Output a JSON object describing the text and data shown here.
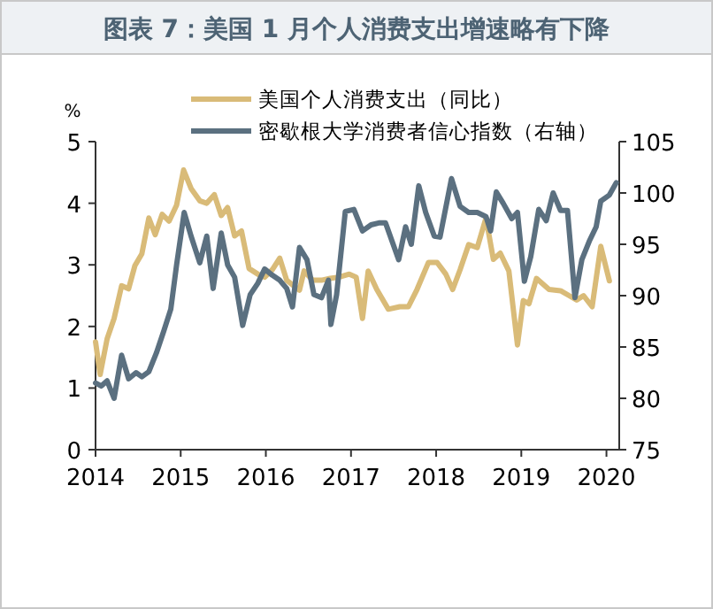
{
  "chart_data": {
    "type": "line",
    "title": "图表 7：美国 1 月个人消费支出增速略有下降",
    "ylabel": "%",
    "legend": "top right",
    "grid": false,
    "xlim": [
      2014,
      2020.15
    ],
    "xticks": [
      2014,
      2015,
      2016,
      2017,
      2018,
      2019,
      2020
    ],
    "ylim": [
      0,
      5
    ],
    "yticks": [
      0,
      1,
      2,
      3,
      4,
      5
    ],
    "y2lim": [
      75,
      105
    ],
    "y2ticks": [
      75,
      80,
      85,
      90,
      95,
      100,
      105
    ],
    "series": [
      {
        "name": "美国个人消费支出（同比）",
        "color": "#d9bb78",
        "x": [
          2014.0,
          2014.054,
          2014.136,
          2014.218,
          2014.306,
          2014.388,
          2014.463,
          2014.544,
          2014.626,
          2014.701,
          2014.782,
          2014.864,
          2014.952,
          2015.034,
          2015.122,
          2015.224,
          2015.306,
          2015.395,
          2015.476,
          2015.551,
          2015.633,
          2015.714,
          2015.803,
          2015.905,
          2015.986,
          2016.075,
          2016.163,
          2016.245,
          2016.327,
          2016.395,
          2016.449,
          2016.551,
          2016.653,
          2016.755,
          2016.857,
          2016.98,
          2017.061,
          2017.135,
          2017.202,
          2017.303,
          2017.438,
          2017.573,
          2017.674,
          2017.775,
          2017.91,
          2018.011,
          2018.113,
          2018.194,
          2018.281,
          2018.382,
          2018.483,
          2018.585,
          2018.672,
          2018.753,
          2018.854,
          2018.955,
          2019.023,
          2019.09,
          2019.178,
          2019.326,
          2019.461,
          2019.562,
          2019.65,
          2019.731,
          2019.832,
          2019.933,
          2020.034
        ],
        "values": [
          1.75,
          1.22,
          1.8,
          2.13,
          2.66,
          2.61,
          2.99,
          3.18,
          3.76,
          3.49,
          3.82,
          3.71,
          3.97,
          4.54,
          4.24,
          4.04,
          4.0,
          4.14,
          3.8,
          3.93,
          3.47,
          3.55,
          2.94,
          2.85,
          2.8,
          2.92,
          3.11,
          2.75,
          2.66,
          2.59,
          2.9,
          2.75,
          2.75,
          2.78,
          2.8,
          2.85,
          2.8,
          2.13,
          2.9,
          2.6,
          2.28,
          2.32,
          2.32,
          2.6,
          3.04,
          3.04,
          2.85,
          2.6,
          2.92,
          3.33,
          3.28,
          3.76,
          3.09,
          3.19,
          2.9,
          1.7,
          2.42,
          2.37,
          2.78,
          2.6,
          2.58,
          2.5,
          2.43,
          2.5,
          2.32,
          3.3,
          2.74
        ]
      },
      {
        "name": "密歇根大学消费者信心指数（右轴）",
        "color": "#5b7080",
        "axis": "y2",
        "x": [
          2014.0,
          2014.068,
          2014.136,
          2014.218,
          2014.306,
          2014.388,
          2014.476,
          2014.544,
          2014.626,
          2014.714,
          2014.803,
          2014.884,
          2014.952,
          2015.041,
          2015.122,
          2015.224,
          2015.306,
          2015.381,
          2015.476,
          2015.551,
          2015.633,
          2015.728,
          2015.816,
          2015.905,
          2015.986,
          2016.075,
          2016.163,
          2016.245,
          2016.313,
          2016.395,
          2016.483,
          2016.565,
          2016.653,
          2016.735,
          2016.764,
          2016.831,
          2016.933,
          2017.034,
          2017.135,
          2017.236,
          2017.337,
          2017.405,
          2017.56,
          2017.641,
          2017.708,
          2017.796,
          2017.877,
          2017.978,
          2018.045,
          2018.18,
          2018.281,
          2018.382,
          2018.483,
          2018.585,
          2018.639,
          2018.706,
          2018.787,
          2018.888,
          2018.955,
          2019.036,
          2019.111,
          2019.205,
          2019.293,
          2019.374,
          2019.461,
          2019.542,
          2019.63,
          2019.711,
          2019.798,
          2019.879,
          2019.933,
          2020.034,
          2020.115
        ],
        "values": [
          81.5,
          81.2,
          81.7,
          80.0,
          84.2,
          81.9,
          82.5,
          82.1,
          82.6,
          84.4,
          86.6,
          88.7,
          93.0,
          98.1,
          95.8,
          93.2,
          95.8,
          90.7,
          96.1,
          93.0,
          91.8,
          87.1,
          90.1,
          91.2,
          92.6,
          92.0,
          91.5,
          90.7,
          88.9,
          94.7,
          93.5,
          90.1,
          89.8,
          91.5,
          87.2,
          90.1,
          98.2,
          98.4,
          96.3,
          96.9,
          97.1,
          97.1,
          93.5,
          96.7,
          95.0,
          100.7,
          98.1,
          95.8,
          95.7,
          101.4,
          98.7,
          98.1,
          98.1,
          97.7,
          96.3,
          100.1,
          99.0,
          97.5,
          98.1,
          91.4,
          93.8,
          98.4,
          97.3,
          100.0,
          98.3,
          98.3,
          89.8,
          93.5,
          95.3,
          96.7,
          99.2,
          99.8,
          101.0
        ]
      }
    ]
  }
}
